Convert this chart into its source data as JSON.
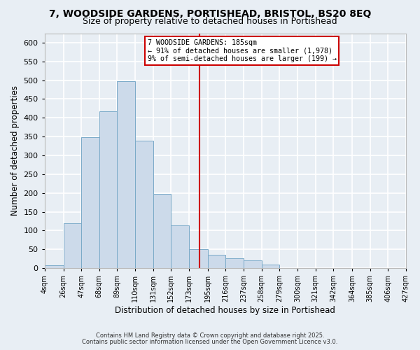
{
  "title_line1": "7, WOODSIDE GARDENS, PORTISHEAD, BRISTOL, BS20 8EQ",
  "title_line2": "Size of property relative to detached houses in Portishead",
  "xlabel": "Distribution of detached houses by size in Portishead",
  "ylabel": "Number of detached properties",
  "footnote1": "Contains HM Land Registry data © Crown copyright and database right 2025.",
  "footnote2": "Contains public sector information licensed under the Open Government Licence v3.0.",
  "bin_edges": [
    4,
    26,
    47,
    68,
    89,
    110,
    131,
    152,
    173,
    195,
    216,
    237,
    258,
    279,
    300,
    321,
    342,
    364,
    385,
    406,
    427
  ],
  "bin_counts": [
    7,
    120,
    348,
    418,
    498,
    340,
    198,
    114,
    50,
    35,
    26,
    20,
    10,
    0,
    0,
    0,
    0,
    0,
    0,
    0
  ],
  "bar_facecolor": "#ccdaea",
  "bar_edgecolor": "#7aaac8",
  "vline_x": 185,
  "vline_color": "#cc0000",
  "annotation_box_text": "7 WOODSIDE GARDENS: 185sqm\n← 91% of detached houses are smaller (1,978)\n9% of semi-detached houses are larger (199) →",
  "box_edgecolor": "#cc0000",
  "background_color": "#e8eef4",
  "plot_bg_color": "#e8eef4",
  "grid_color": "#ffffff",
  "ylim": [
    0,
    625
  ],
  "xlim": [
    4,
    427
  ],
  "tick_labels": [
    "4sqm",
    "26sqm",
    "47sqm",
    "68sqm",
    "89sqm",
    "110sqm",
    "131sqm",
    "152sqm",
    "173sqm",
    "195sqm",
    "216sqm",
    "237sqm",
    "258sqm",
    "279sqm",
    "300sqm",
    "321sqm",
    "342sqm",
    "364sqm",
    "385sqm",
    "406sqm",
    "427sqm"
  ],
  "tick_positions": [
    4,
    26,
    47,
    68,
    89,
    110,
    131,
    152,
    173,
    195,
    216,
    237,
    258,
    279,
    300,
    321,
    342,
    364,
    385,
    406,
    427
  ],
  "title_fontsize": 10,
  "subtitle_fontsize": 9,
  "xlabel_fontsize": 8.5,
  "ylabel_fontsize": 8.5,
  "tick_fontsize": 7,
  "footnote_fontsize": 6.0
}
